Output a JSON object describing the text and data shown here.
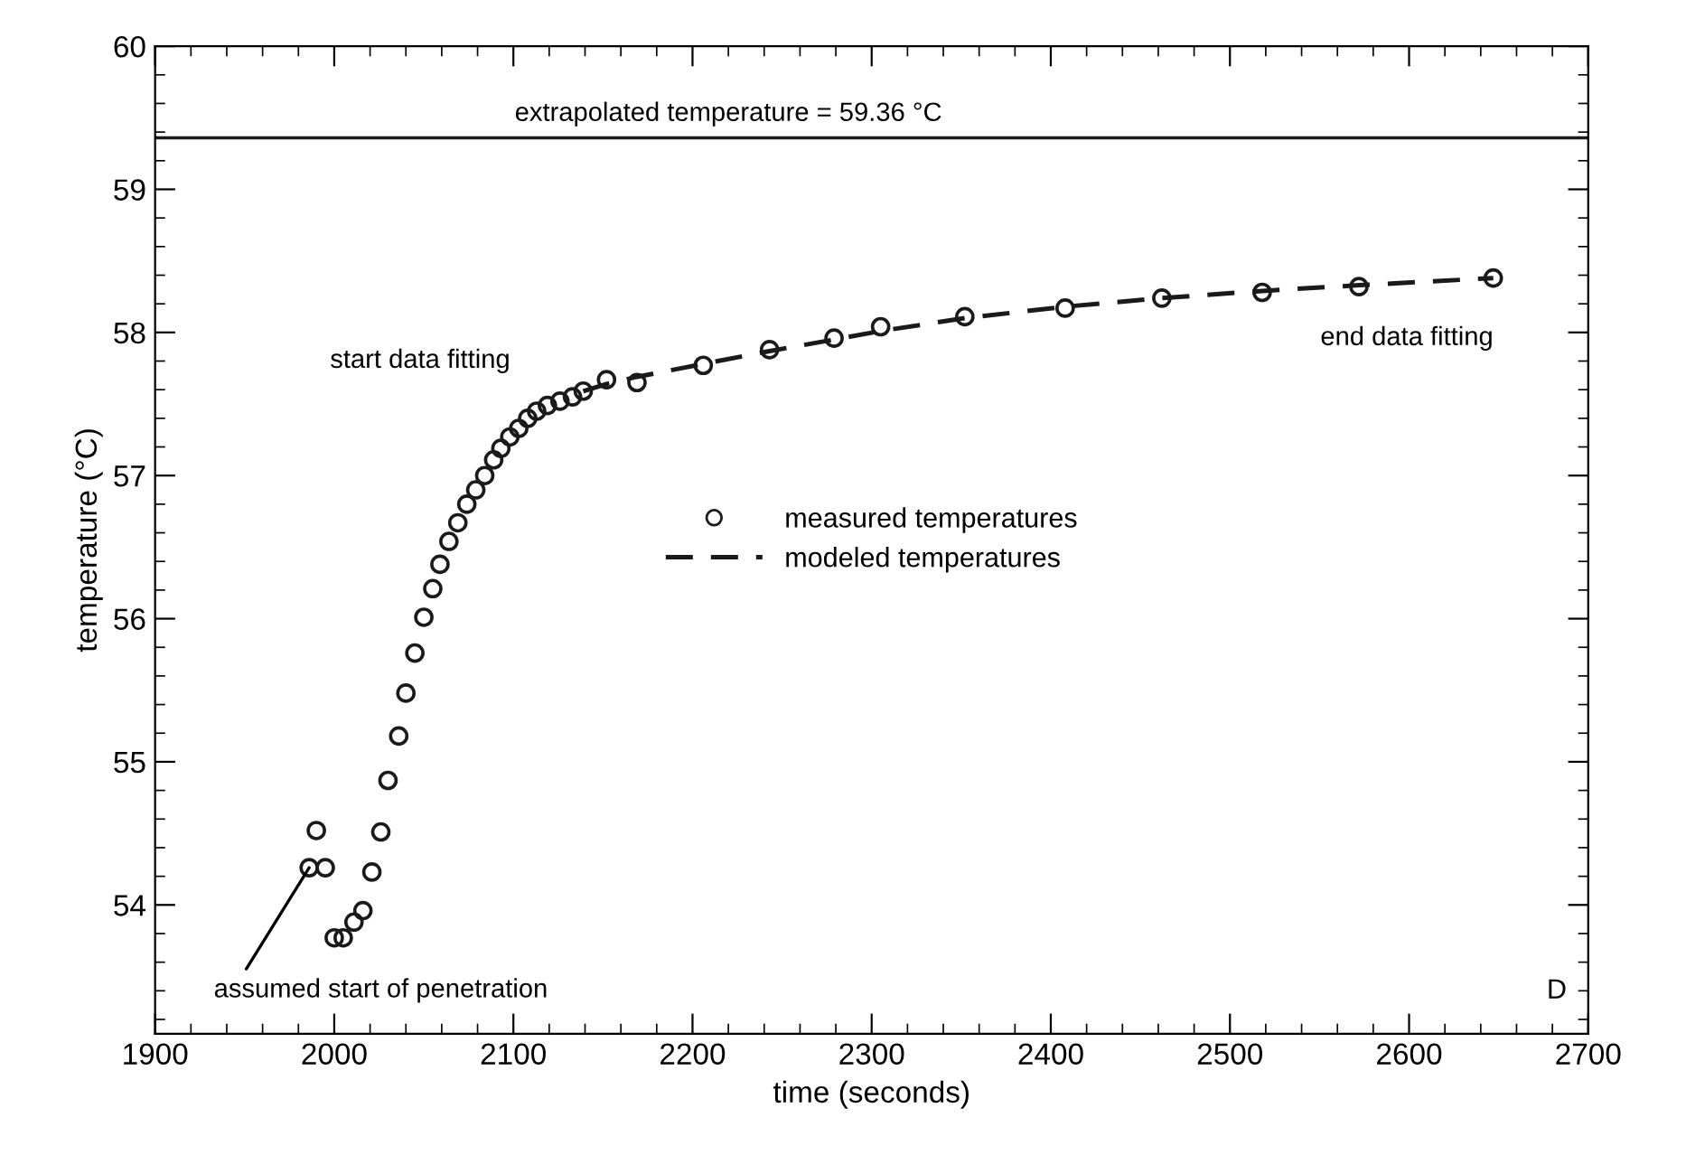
{
  "chart_data": {
    "type": "scatter",
    "xlabel": "time (seconds)",
    "ylabel": "temperature (°C)",
    "xlim": [
      1900,
      2700
    ],
    "ylim": [
      53.1,
      60
    ],
    "xticks": [
      1900,
      2000,
      2100,
      2200,
      2300,
      2400,
      2500,
      2600,
      2700
    ],
    "yticks": [
      54,
      55,
      56,
      57,
      58,
      59,
      60
    ],
    "grid": false,
    "legend": "center",
    "series": [
      {
        "name": "measured temperatures",
        "color": "#1a1a1a",
        "marker": "circle",
        "x": [
          1986,
          1995,
          1990,
          2000,
          2005,
          2011,
          2016,
          2021,
          2026,
          2030,
          2036,
          2040,
          2045,
          2050,
          2055,
          2059,
          2064,
          2069,
          2074,
          2079,
          2084,
          2089,
          2093,
          2098,
          2103,
          2108,
          2113,
          2119,
          2126,
          2133,
          2139,
          2152,
          2169,
          2206,
          2243,
          2279,
          2305,
          2352,
          2408,
          2462,
          2518,
          2572,
          2647
        ],
        "values": [
          54.26,
          54.26,
          54.52,
          53.77,
          53.77,
          53.88,
          53.96,
          54.23,
          54.51,
          54.87,
          55.18,
          55.48,
          55.76,
          56.01,
          56.21,
          56.38,
          56.54,
          56.67,
          56.8,
          56.9,
          57.0,
          57.11,
          57.19,
          57.27,
          57.33,
          57.4,
          57.45,
          57.49,
          57.52,
          57.55,
          57.59,
          57.67,
          57.65,
          57.77,
          57.88,
          57.96,
          58.04,
          58.11,
          58.17,
          58.24,
          58.28,
          58.32,
          58.38
        ]
      },
      {
        "name": "modeled temperatures",
        "type": "line",
        "color": "#1a1a1a",
        "line_style": "dashed",
        "x": [
          2139,
          2152,
          2169,
          2206,
          2243,
          2279,
          2305,
          2352,
          2408,
          2462,
          2518,
          2572,
          2647
        ],
        "values": [
          57.59,
          57.64,
          57.69,
          57.78,
          57.87,
          57.95,
          58.01,
          58.1,
          58.18,
          58.24,
          58.29,
          58.33,
          58.38
        ]
      }
    ],
    "ref_lines": [
      {
        "axis": "y",
        "value": 59.36,
        "label": "extrapolated temperature = 59.36 °C",
        "color": "#1a1a1a"
      }
    ],
    "annotations": [
      {
        "text": "start data fitting",
        "x": 2139,
        "y": 57.59
      },
      {
        "text": "end data fitting",
        "x": 2647,
        "y": 58.38
      },
      {
        "text": "assumed start of penetration",
        "x": 1986,
        "y": 54.26
      },
      "D"
    ]
  }
}
